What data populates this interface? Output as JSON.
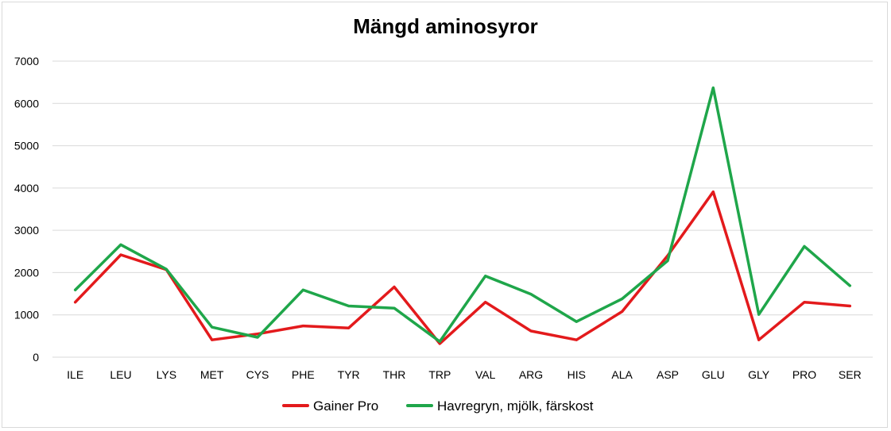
{
  "chart_data": {
    "type": "line",
    "title": "Mängd aminosyror",
    "xlabel": "",
    "ylabel": "",
    "ylim": [
      0,
      7000
    ],
    "yticks": [
      0,
      1000,
      2000,
      3000,
      4000,
      5000,
      6000,
      7000
    ],
    "grid": true,
    "legend_position": "bottom",
    "categories": [
      "ILE",
      "LEU",
      "LYS",
      "MET",
      "CYS",
      "PHE",
      "TYR",
      "THR",
      "TRP",
      "VAL",
      "ARG",
      "HIS",
      "ALA",
      "ASP",
      "GLU",
      "GLY",
      "PRO",
      "SER"
    ],
    "series": [
      {
        "name": "Gainer Pro",
        "color": "#e31a1c",
        "values": [
          1300,
          2420,
          2070,
          410,
          550,
          740,
          690,
          1660,
          320,
          1300,
          620,
          410,
          1080,
          2400,
          3910,
          410,
          1300,
          1210
        ]
      },
      {
        "name": "Havregryn, mjölk, färskost",
        "color": "#1fa64a",
        "values": [
          1590,
          2660,
          2080,
          710,
          470,
          1590,
          1210,
          1160,
          370,
          1920,
          1490,
          840,
          1380,
          2280,
          6370,
          1010,
          2620,
          1690
        ]
      }
    ]
  }
}
